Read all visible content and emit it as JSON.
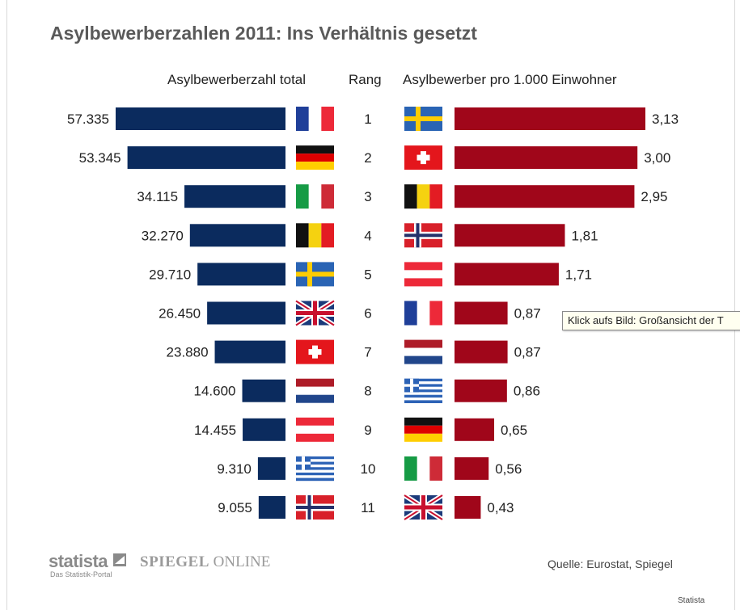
{
  "chart_data": {
    "type": "bar",
    "title": "Asylbewerberzahlen 2011: Ins Verhältnis gesetzt",
    "left_header": "Asylbewerberzahl total",
    "rank_header": "Rang",
    "right_header": "Asylbewerber pro 1.000 Einwohner",
    "ranks": [
      "1",
      "2",
      "3",
      "4",
      "5",
      "6",
      "7",
      "8",
      "9",
      "10",
      "11"
    ],
    "total": {
      "countries": [
        "France",
        "Germany",
        "Italy",
        "Belgium",
        "Sweden",
        "United Kingdom",
        "Switzerland",
        "Netherlands",
        "Austria",
        "Greece",
        "Norway"
      ],
      "values": [
        57335,
        53345,
        34115,
        32270,
        29710,
        26450,
        23880,
        14600,
        14455,
        9310,
        9055
      ],
      "labels": [
        "57.335",
        "53.345",
        "34.115",
        "32.270",
        "29.710",
        "26.450",
        "23.880",
        "14.600",
        "14.455",
        "9.310",
        "9.055"
      ],
      "color": "#0b2b5e"
    },
    "per_1000": {
      "countries": [
        "Sweden",
        "Switzerland",
        "Belgium",
        "Norway",
        "Austria",
        "France",
        "Netherlands",
        "Greece",
        "Germany",
        "Italy",
        "United Kingdom"
      ],
      "values": [
        3.13,
        3.0,
        2.95,
        1.81,
        1.71,
        0.87,
        0.87,
        0.86,
        0.65,
        0.56,
        0.43
      ],
      "labels": [
        "3,13",
        "3,00",
        "2,95",
        "1,81",
        "1,71",
        "0,87",
        "0,87",
        "0,86",
        "0,65",
        "0,56",
        "0,43"
      ],
      "color": "#a0061a"
    },
    "flag_icons": {
      "France": "flag-france-icon",
      "Germany": "flag-germany-icon",
      "Italy": "flag-italy-icon",
      "Belgium": "flag-belgium-icon",
      "Sweden": "flag-sweden-icon",
      "United Kingdom": "flag-uk-icon",
      "Switzerland": "flag-switzerland-icon",
      "Netherlands": "flag-netherlands-icon",
      "Austria": "flag-austria-icon",
      "Greece": "flag-greece-icon",
      "Norway": "flag-norway-icon"
    }
  },
  "tooltip": "Klick aufs Bild: Großansicht der T",
  "footer": {
    "statista": "statista",
    "statista_sub": "Das Statistik-Portal",
    "spiegel_bold": "SPIEGEL",
    "spiegel_rest": " ONLINE",
    "source": "Quelle: Eurostat, Spiegel",
    "credit": "Statista"
  }
}
